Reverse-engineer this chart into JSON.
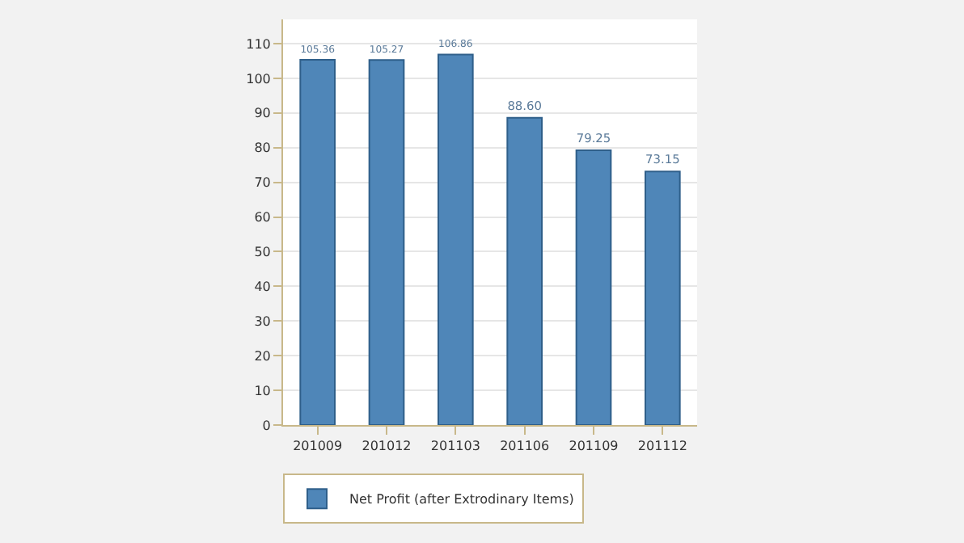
{
  "chart_data": {
    "type": "bar",
    "categories": [
      "201009",
      "201012",
      "201103",
      "201106",
      "201109",
      "201112"
    ],
    "series": [
      {
        "name": "Net Profit (after Extrodinary Items)",
        "color": "#4f86b8",
        "values": [
          105.36,
          105.27,
          106.86,
          88.6,
          79.25,
          73.15
        ]
      }
    ],
    "value_labels": [
      "105.36",
      "105.27",
      "106.86",
      "88.60",
      "79.25",
      "73.15"
    ],
    "ylim": [
      0,
      117
    ],
    "yticks": [
      0,
      10,
      20,
      30,
      40,
      50,
      60,
      70,
      80,
      90,
      100,
      110
    ],
    "grid": "y",
    "legend": "bottom left"
  }
}
